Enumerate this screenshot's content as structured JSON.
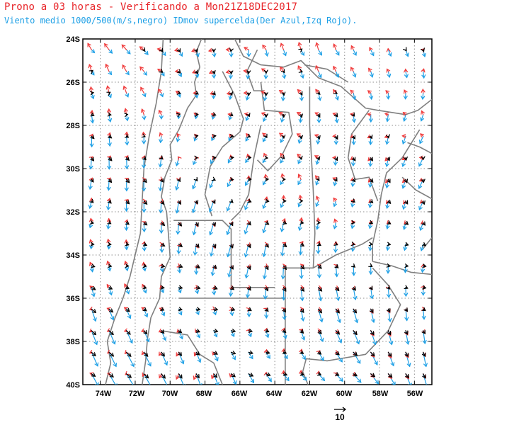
{
  "header": {
    "title": "Prono a 03 horas - Verificando a Mon21Z18DEC2017",
    "subtitle": "Viento medio 1000/500(m/s,negro) IDmov supercelda(Der Azul,Izq Rojo)."
  },
  "map": {
    "lon_range": [
      -75,
      -55
    ],
    "lat_range": [
      -40,
      -24
    ],
    "grid": true,
    "lat_labels": [
      "24S",
      "26S",
      "28S",
      "30S",
      "32S",
      "34S",
      "36S",
      "38S",
      "40S"
    ],
    "lon_labels": [
      "74W",
      "72W",
      "70W",
      "68W",
      "66W",
      "64W",
      "62W",
      "60W",
      "58W",
      "56W"
    ],
    "colors": {
      "mean_wind": "#000000",
      "right_mover": "#1ea0e6",
      "left_mover": "#f03c3c",
      "boundaries": "#808080",
      "grid": "#8c8c8c"
    },
    "vector_scale": {
      "label": "10",
      "value_ms": 10
    }
  }
}
